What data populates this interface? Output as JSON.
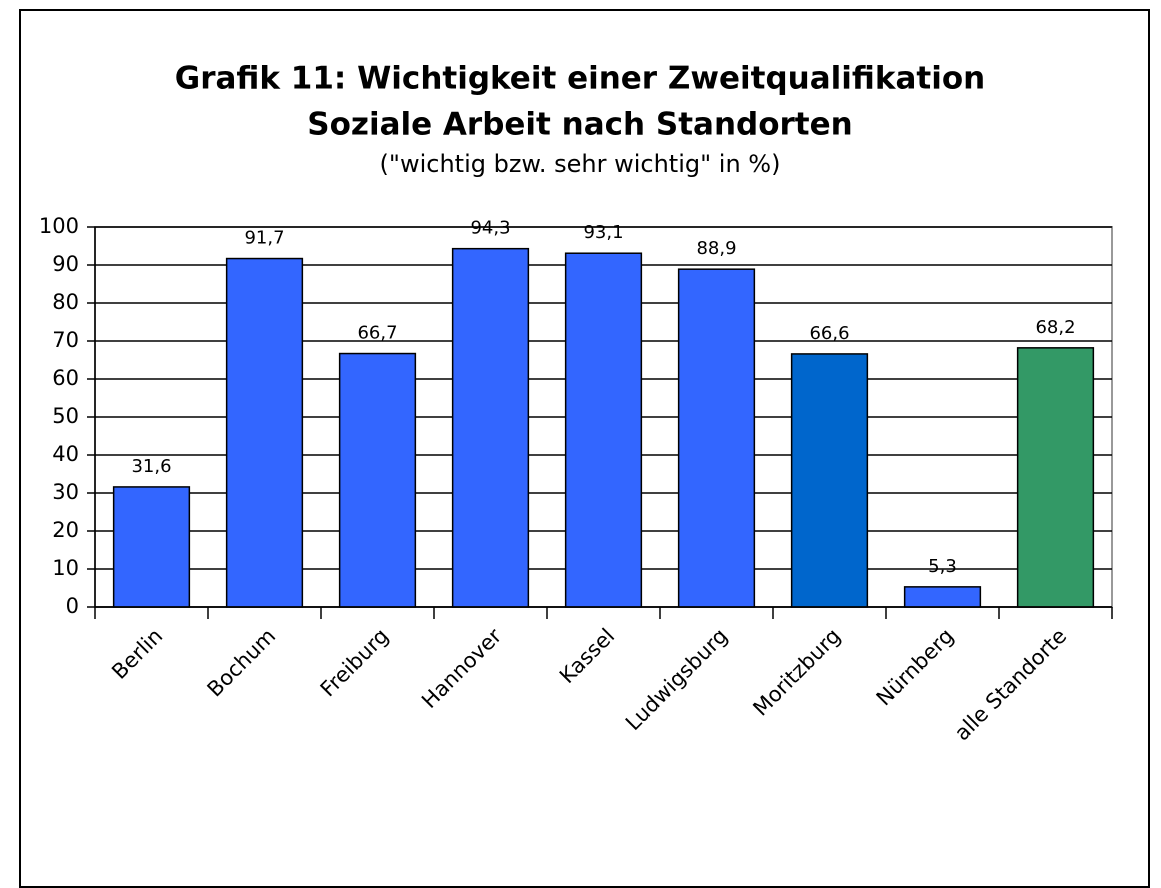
{
  "chart_data": {
    "type": "bar",
    "title": [
      "Grafik 11: Wichtigkeit einer Zweitqualifikation",
      "Soziale Arbeit nach Standorten"
    ],
    "subtitle": "(\"wichtig bzw. sehr wichtig\" in %)",
    "categories": [
      "Berlin",
      "Bochum",
      "Freiburg",
      "Hannover",
      "Kassel",
      "Ludwigsburg",
      "Moritzburg",
      "Nürnberg",
      "alle Standorte"
    ],
    "values": [
      31.6,
      91.7,
      66.7,
      94.3,
      93.1,
      88.9,
      66.6,
      5.3,
      68.2
    ],
    "value_labels": [
      "31,6",
      "91,7",
      "66,7",
      "94,3",
      "93,1",
      "88,9",
      "66,6",
      "5,3",
      "68,2"
    ],
    "colors": [
      "#3366ff",
      "#3366ff",
      "#3366ff",
      "#3366ff",
      "#3366ff",
      "#3366ff",
      "#0066cc",
      "#3366ff",
      "#339966"
    ],
    "ylim": [
      0,
      100
    ],
    "yticks": [
      0,
      10,
      20,
      30,
      40,
      50,
      60,
      70,
      80,
      90,
      100
    ],
    "grid": true
  }
}
